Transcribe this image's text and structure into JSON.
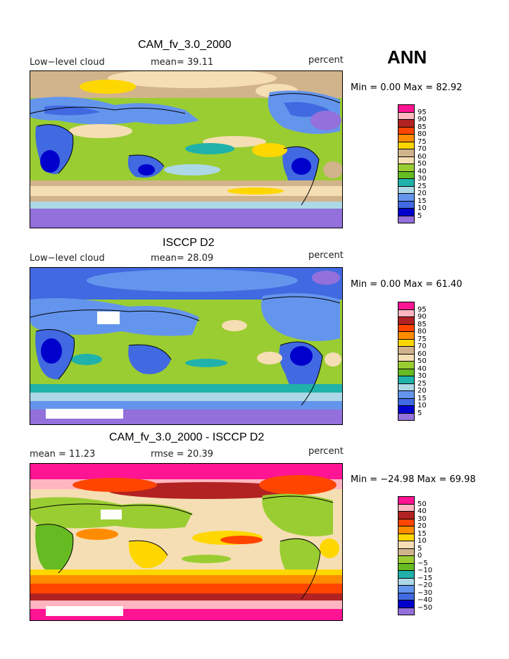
{
  "season": "ANN",
  "panels": [
    {
      "title": "CAM_fv_3.0_2000",
      "left": "Low−level cloud",
      "center": "mean=  39.11",
      "right": "percent",
      "minmax": "Min =    0.00 Max =   82.92",
      "legend": [
        "95",
        "90",
        "85",
        "80",
        "75",
        "70",
        "60",
        "50",
        "40",
        "30",
        "25",
        "20",
        "15",
        "10",
        "5"
      ],
      "colors": [
        "#ff1493",
        "#ffb6c1",
        "#b22222",
        "#ff4500",
        "#ff8c00",
        "#ffd700",
        "#d2b48c",
        "#f5deb3",
        "#9acd32",
        "#66bb22",
        "#20b2aa",
        "#add8e6",
        "#6495ed",
        "#4169e1",
        "#0000cd",
        "#9370db"
      ]
    },
    {
      "title": "ISCCP D2",
      "left": "Low−level cloud",
      "center": "mean=  28.09",
      "right": "percent",
      "minmax": "Min =    0.00 Max =   61.40",
      "legend": [
        "95",
        "90",
        "85",
        "80",
        "75",
        "70",
        "60",
        "50",
        "40",
        "30",
        "25",
        "20",
        "15",
        "10",
        "5"
      ],
      "colors": [
        "#ff1493",
        "#ffb6c1",
        "#b22222",
        "#ff4500",
        "#ff8c00",
        "#ffd700",
        "#d2b48c",
        "#f5deb3",
        "#9acd32",
        "#66bb22",
        "#20b2aa",
        "#add8e6",
        "#6495ed",
        "#4169e1",
        "#0000cd",
        "#9370db"
      ]
    },
    {
      "title": "CAM_fv_3.0_2000 - ISCCP D2",
      "left": "mean =   11.23",
      "center": "rmse =   20.39",
      "right": "percent",
      "minmax": "Min = −24.98 Max =   69.98",
      "legend": [
        "50",
        "40",
        "30",
        "20",
        "15",
        "10",
        "5",
        "0",
        "−5",
        "−10",
        "−15",
        "−20",
        "−30",
        "−40",
        "−50"
      ],
      "colors": [
        "#ff1493",
        "#ffb6c1",
        "#b22222",
        "#ff4500",
        "#ff8c00",
        "#ffd700",
        "#f5deb3",
        "#d2b48c",
        "#9acd32",
        "#66bb22",
        "#20b2aa",
        "#add8e6",
        "#6495ed",
        "#4169e1",
        "#0000cd",
        "#9370db"
      ]
    }
  ],
  "chart_data": [
    {
      "type": "heatmap",
      "title": "CAM_fv_3.0_2000",
      "subtitle": "Low−level cloud",
      "units": "percent",
      "mean": 39.11,
      "min": 0.0,
      "max": 82.92,
      "levels": [
        5,
        10,
        15,
        20,
        25,
        30,
        40,
        50,
        60,
        70,
        75,
        80,
        85,
        90,
        95
      ]
    },
    {
      "type": "heatmap",
      "title": "ISCCP D2",
      "subtitle": "Low−level cloud",
      "units": "percent",
      "mean": 28.09,
      "min": 0.0,
      "max": 61.4,
      "levels": [
        5,
        10,
        15,
        20,
        25,
        30,
        40,
        50,
        60,
        70,
        75,
        80,
        85,
        90,
        95
      ]
    },
    {
      "type": "heatmap",
      "title": "CAM_fv_3.0_2000 - ISCCP D2",
      "units": "percent",
      "mean": 11.23,
      "rmse": 20.39,
      "min": -24.98,
      "max": 69.98,
      "levels": [
        -50,
        -40,
        -30,
        -20,
        -15,
        -10,
        -5,
        0,
        5,
        10,
        15,
        20,
        30,
        40,
        50
      ]
    }
  ]
}
